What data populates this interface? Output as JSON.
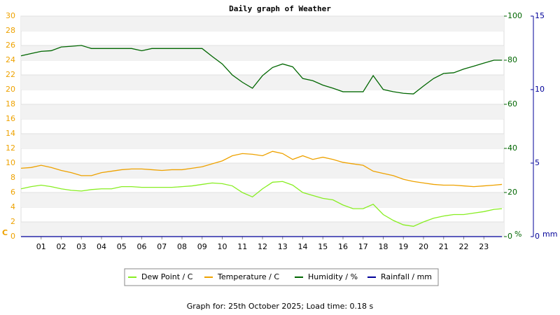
{
  "chart_data": {
    "type": "line",
    "title": "Daily graph of Weather",
    "footer": "Graph for: 25th October 2025; Load time: 0.18 s",
    "y_unit": "C",
    "y2_unit": "%",
    "y3_unit": "mm",
    "xlim": [
      0,
      24
    ],
    "xticks": [
      {
        "value": 1,
        "label": "01"
      },
      {
        "value": 2,
        "label": "02"
      },
      {
        "value": 3,
        "label": "03"
      },
      {
        "value": 4,
        "label": "04"
      },
      {
        "value": 5,
        "label": "05"
      },
      {
        "value": 6,
        "label": "06"
      },
      {
        "value": 7,
        "label": "07"
      },
      {
        "value": 8,
        "label": "08"
      },
      {
        "value": 9,
        "label": "09"
      },
      10,
      11,
      12,
      13,
      14,
      15,
      16,
      17,
      18,
      19,
      20,
      21,
      22,
      23
    ],
    "ylim": [
      0,
      30
    ],
    "yticks": [
      0,
      2,
      4,
      6,
      8,
      10,
      12,
      14,
      16,
      18,
      20,
      22,
      24,
      26,
      28,
      30
    ],
    "ytick_color": "#eea200",
    "y2lim": [
      0,
      100
    ],
    "y2ticks": [
      0,
      20,
      40,
      60,
      80,
      100
    ],
    "y2tick_color": "#006600",
    "y3lim": [
      0,
      15
    ],
    "y3ticks": [
      0,
      5,
      10,
      15
    ],
    "y3tick_color": "#000099",
    "grid": "bands",
    "x": [
      0,
      0.5,
      1,
      1.5,
      2,
      2.5,
      3,
      3.5,
      4,
      4.5,
      5,
      5.5,
      6,
      6.5,
      7,
      7.5,
      8,
      8.5,
      9,
      9.5,
      10,
      10.5,
      11,
      11.5,
      12,
      12.5,
      13,
      13.5,
      14,
      14.5,
      15,
      15.5,
      16,
      16.5,
      17,
      17.5,
      18,
      18.5,
      19,
      19.5,
      20,
      20.5,
      21,
      21.5,
      22,
      22.5,
      23,
      23.5,
      23.9
    ],
    "series": [
      {
        "name": "Dew Point / C",
        "color": "#88ee22",
        "axis": "y",
        "values": [
          6.5,
          6.8,
          7.0,
          6.8,
          6.5,
          6.3,
          6.2,
          6.4,
          6.5,
          6.5,
          6.8,
          6.8,
          6.7,
          6.7,
          6.7,
          6.7,
          6.8,
          6.9,
          7.1,
          7.3,
          7.2,
          6.9,
          6.0,
          5.4,
          6.5,
          7.4,
          7.5,
          7.0,
          6.0,
          5.6,
          5.2,
          5.0,
          4.3,
          3.8,
          3.8,
          4.4,
          3.0,
          2.2,
          1.6,
          1.4,
          2.0,
          2.5,
          2.8,
          3.0,
          3.0,
          3.2,
          3.4,
          3.7,
          3.8
        ]
      },
      {
        "name": "Temperature / C",
        "color": "#eea200",
        "axis": "y",
        "values": [
          9.3,
          9.4,
          9.7,
          9.4,
          9.0,
          8.7,
          8.3,
          8.3,
          8.7,
          8.9,
          9.1,
          9.2,
          9.2,
          9.1,
          9.0,
          9.1,
          9.1,
          9.3,
          9.5,
          9.9,
          10.3,
          11.0,
          11.3,
          11.2,
          11.0,
          11.6,
          11.3,
          10.5,
          11.0,
          10.5,
          10.8,
          10.5,
          10.1,
          9.9,
          9.7,
          8.9,
          8.6,
          8.3,
          7.8,
          7.5,
          7.3,
          7.1,
          7.0,
          7.0,
          6.9,
          6.8,
          6.9,
          7.0,
          7.1
        ]
      },
      {
        "name": "Humidity / %",
        "color": "#006600",
        "axis": "y2",
        "values": [
          82,
          83,
          84,
          84.3,
          86,
          86.3,
          86.7,
          85.3,
          85.3,
          85.3,
          85.3,
          85.3,
          84.3,
          85.3,
          85.3,
          85.3,
          85.3,
          85.3,
          85.3,
          81.7,
          78.3,
          73.3,
          70,
          67.3,
          73,
          76.7,
          78.3,
          77,
          71.7,
          70.7,
          68.7,
          67.3,
          65.7,
          65.7,
          65.7,
          73,
          66.7,
          65.7,
          65,
          64.7,
          68.3,
          71.7,
          74,
          74.3,
          76,
          77.3,
          78.7,
          80,
          80
        ]
      },
      {
        "name": "Rainfall / mm",
        "color": "#000099",
        "axis": "y3",
        "values": [
          0,
          0,
          0,
          0,
          0,
          0,
          0,
          0,
          0,
          0,
          0,
          0,
          0,
          0,
          0,
          0,
          0,
          0,
          0,
          0,
          0,
          0,
          0,
          0,
          0,
          0,
          0,
          0,
          0,
          0,
          0,
          0,
          0,
          0,
          0,
          0,
          0,
          0,
          0,
          0,
          0,
          0,
          0,
          0,
          0,
          0,
          0,
          0,
          0
        ]
      }
    ]
  }
}
